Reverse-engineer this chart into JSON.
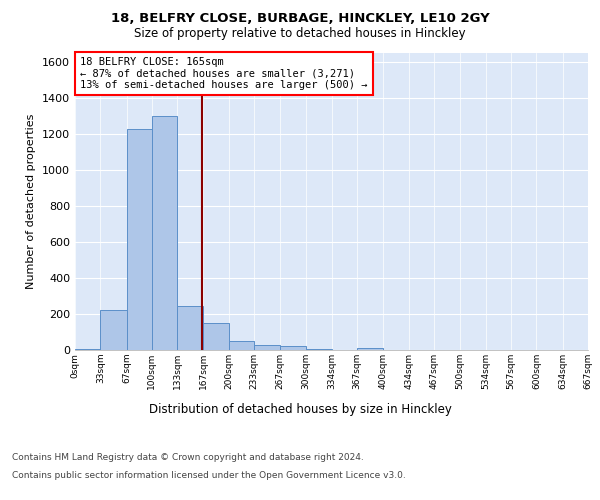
{
  "title1": "18, BELFRY CLOSE, BURBAGE, HINCKLEY, LE10 2GY",
  "title2": "Size of property relative to detached houses in Hinckley",
  "xlabel": "Distribution of detached houses by size in Hinckley",
  "ylabel": "Number of detached properties",
  "footer1": "Contains HM Land Registry data © Crown copyright and database right 2024.",
  "footer2": "Contains public sector information licensed under the Open Government Licence v3.0.",
  "annotation_line1": "18 BELFRY CLOSE: 165sqm",
  "annotation_line2": "← 87% of detached houses are smaller (3,271)",
  "annotation_line3": "13% of semi-detached houses are larger (500) →",
  "property_size": 165,
  "bin_edges": [
    0,
    33,
    67,
    100,
    133,
    167,
    200,
    233,
    267,
    300,
    334,
    367,
    400,
    434,
    467,
    500,
    534,
    567,
    600,
    634,
    667
  ],
  "bar_heights": [
    5,
    220,
    1225,
    1300,
    245,
    150,
    50,
    25,
    20,
    5,
    0,
    10,
    0,
    0,
    0,
    0,
    0,
    0,
    0,
    0
  ],
  "bar_color": "#aec6e8",
  "bar_edge_color": "#5b8fc9",
  "vline_color": "#8b0000",
  "background_color": "#dde8f8",
  "ylim": [
    0,
    1650
  ],
  "yticks": [
    0,
    200,
    400,
    600,
    800,
    1000,
    1200,
    1400,
    1600
  ]
}
